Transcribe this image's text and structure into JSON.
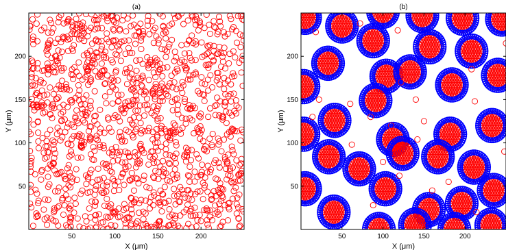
{
  "chart_data": [
    {
      "type": "scatter",
      "title": "(a)",
      "xlabel": "X (μm)",
      "ylabel": "Y (μm)",
      "xlim": [
        0,
        250
      ],
      "ylim": [
        0,
        250
      ],
      "xticks": [
        50,
        100,
        150,
        200
      ],
      "yticks": [
        50,
        100,
        150,
        200
      ],
      "grid": false,
      "series": [
        {
          "color": "#ff0000",
          "marker": "open-circle",
          "distribution": "uniform-random"
        }
      ]
    },
    {
      "type": "scatter",
      "title": "(b)",
      "xlabel": "X (μm)",
      "ylabel": "Y (μm)",
      "xlim": [
        0,
        250
      ],
      "ylim": [
        0,
        250
      ],
      "xticks": [
        50,
        100,
        150,
        200
      ],
      "yticks": [
        50,
        100,
        150,
        200
      ],
      "grid": false,
      "cluster_radius": 17,
      "clusters": [
        [
          5,
          245
        ],
        [
          50,
          235
        ],
        [
          100,
          252
        ],
        [
          148,
          247
        ],
        [
          197,
          244
        ],
        [
          245,
          243
        ],
        [
          33,
          192
        ],
        [
          88,
          218
        ],
        [
          157,
          211
        ],
        [
          208,
          206
        ],
        [
          240,
          178
        ],
        [
          3,
          165
        ],
        [
          104,
          177
        ],
        [
          133,
          182
        ],
        [
          184,
          167
        ],
        [
          41,
          126
        ],
        [
          91,
          149
        ],
        [
          112,
          104
        ],
        [
          182,
          110
        ],
        [
          233,
          120
        ],
        [
          3,
          110
        ],
        [
          34,
          84
        ],
        [
          71,
          70
        ],
        [
          124,
          88
        ],
        [
          167,
          84
        ],
        [
          211,
          72
        ],
        [
          5,
          47
        ],
        [
          103,
          47
        ],
        [
          156,
          23
        ],
        [
          196,
          30
        ],
        [
          235,
          45
        ],
        [
          40,
          20
        ],
        [
          95,
          0
        ],
        [
          139,
          5
        ],
        [
          187,
          0
        ],
        [
          232,
          5
        ]
      ],
      "series": [
        {
          "name": "",
          "color": "#ff0000",
          "marker": "open-circle"
        },
        {
          "name": "",
          "color": "#0000ff",
          "marker": "open-circle"
        }
      ]
    }
  ]
}
